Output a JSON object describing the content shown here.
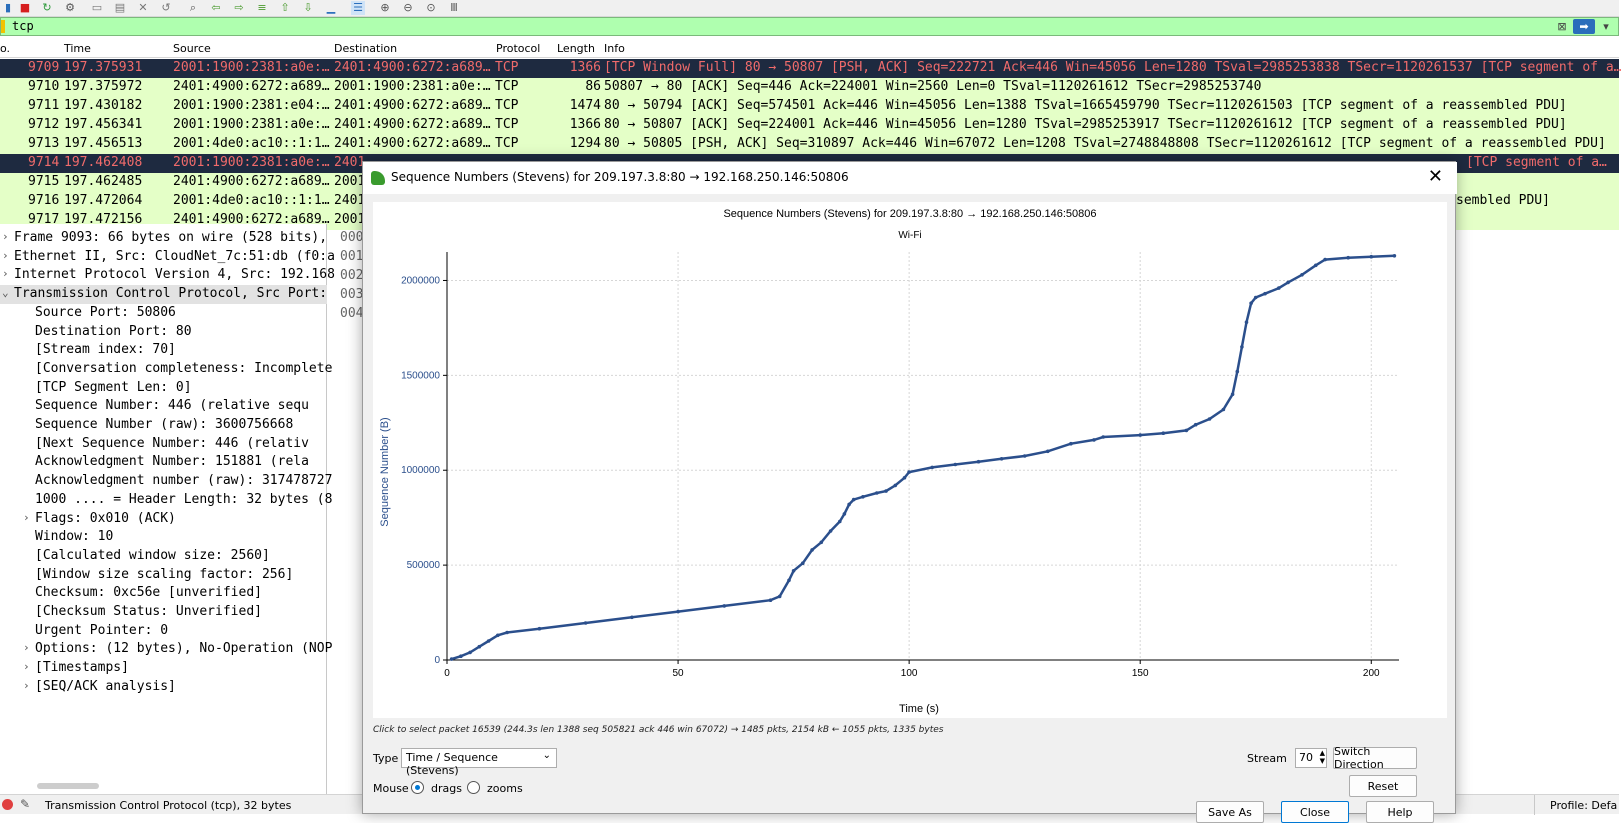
{
  "toolbar": {
    "icons": [
      "shark-fin-icon",
      "stop-capture-icon",
      "restart-capture-icon",
      "capture-options-icon",
      "open-file-icon",
      "save-file-icon",
      "close-file-icon",
      "reload-icon",
      "find-packet-icon",
      "go-back-icon",
      "go-forward-icon",
      "go-to-packet-icon",
      "first-packet-icon",
      "last-packet-icon",
      "auto-scroll-icon",
      "colorize-icon",
      "zoom-in-icon",
      "zoom-out-icon",
      "normal-size-icon",
      "resize-columns-icon"
    ]
  },
  "filter": {
    "value": "tcp"
  },
  "columns": {
    "no": "o.",
    "time": "Time",
    "source": "Source",
    "destination": "Destination",
    "protocol": "Protocol",
    "length": "Length",
    "info": "Info"
  },
  "packets": [
    {
      "no": "9709",
      "time": "197.375931",
      "source": "2001:1900:2381:a0e:…",
      "destination": "2401:4900:6272:a689…",
      "protocol": "TCP",
      "length": "1366",
      "info": "[TCP Window Full] 80 → 50807 [PSH, ACK] Seq=222721 Ack=446 Win=45056 Len=1280 TSval=2985253838 TSecr=1120261537 [TCP segment of a…"
    },
    {
      "no": "9710",
      "time": "197.375972",
      "source": "2401:4900:6272:a689…",
      "destination": "2001:1900:2381:a0e:…",
      "protocol": "TCP",
      "length": "86",
      "info": "50807 → 80 [ACK] Seq=446 Ack=224001 Win=2560 Len=0 TSval=1120261612 TSecr=2985253740"
    },
    {
      "no": "9711",
      "time": "197.430182",
      "source": "2001:1900:2381:e04:…",
      "destination": "2401:4900:6272:a689…",
      "protocol": "TCP",
      "length": "1474",
      "info": "80 → 50794 [ACK] Seq=574501 Ack=446 Win=45056 Len=1388 TSval=1665459790 TSecr=1120261503 [TCP segment of a reassembled PDU]"
    },
    {
      "no": "9712",
      "time": "197.456341",
      "source": "2001:1900:2381:a0e:…",
      "destination": "2401:4900:6272:a689…",
      "protocol": "TCP",
      "length": "1366",
      "info": "80 → 50807 [ACK] Seq=224001 Ack=446 Win=45056 Len=1280 TSval=2985253917 TSecr=1120261612 [TCP segment of a reassembled PDU]"
    },
    {
      "no": "9713",
      "time": "197.456513",
      "source": "2001:4de0:ac10::1:1…",
      "destination": "2401:4900:6272:a689…",
      "protocol": "TCP",
      "length": "1294",
      "info": "80 → 50805 [PSH, ACK] Seq=310897 Ack=446 Win=67072 Len=1208 TSval=2748848808 TSecr=1120261612 [TCP segment of a reassembled PDU]"
    },
    {
      "no": "9714",
      "time": "197.462408",
      "source": "2001:1900:2381:a0e:…",
      "destination": "2401",
      "protocol": "",
      "length": "",
      "info": "[TCP segment of a…"
    },
    {
      "no": "9715",
      "time": "197.462485",
      "source": "2401:4900:6272:a689…",
      "destination": "2001",
      "protocol": "",
      "length": "",
      "info": ""
    },
    {
      "no": "9716",
      "time": "197.472064",
      "source": "2001:4de0:ac10::1:1…",
      "destination": "2401",
      "protocol": "",
      "length": "",
      "info": "sembled PDU]"
    },
    {
      "no": "9717",
      "time": "197.472156",
      "source": "2401:4900:6272:a689…",
      "destination": "2001",
      "protocol": "",
      "length": "",
      "info": ""
    }
  ],
  "details": [
    {
      "exp": "›",
      "text": "Frame 9093: 66 bytes on wire (528 bits),"
    },
    {
      "exp": "›",
      "text": "Ethernet II, Src: CloudNet_7c:51:db (f0:a"
    },
    {
      "exp": "›",
      "text": "Internet Protocol Version 4, Src: 192.168"
    },
    {
      "exp": "⌄",
      "text": "Transmission Control Protocol, Src Port:"
    },
    {
      "exp": "",
      "text": "Source Port: 50806"
    },
    {
      "exp": "",
      "text": "Destination Port: 80"
    },
    {
      "exp": "",
      "text": "[Stream index: 70]"
    },
    {
      "exp": "",
      "text": "[Conversation completeness: Incomplete"
    },
    {
      "exp": "",
      "text": "[TCP Segment Len: 0]"
    },
    {
      "exp": "",
      "text": "Sequence Number: 446    (relative sequ"
    },
    {
      "exp": "",
      "text": "Sequence Number (raw): 3600756668"
    },
    {
      "exp": "",
      "text": "[Next Sequence Number: 446    (relativ"
    },
    {
      "exp": "",
      "text": "Acknowledgment Number: 151881    (rela"
    },
    {
      "exp": "",
      "text": "Acknowledgment number (raw): 317478727"
    },
    {
      "exp": "",
      "text": "1000 .... = Header Length: 32 bytes (8"
    },
    {
      "exp": "›",
      "text": "Flags: 0x010 (ACK)"
    },
    {
      "exp": "",
      "text": "Window: 10"
    },
    {
      "exp": "",
      "text": "[Calculated window size: 2560]"
    },
    {
      "exp": "",
      "text": "[Window size scaling factor: 256]"
    },
    {
      "exp": "",
      "text": "Checksum: 0xc56e [unverified]"
    },
    {
      "exp": "",
      "text": "[Checksum Status: Unverified]"
    },
    {
      "exp": "",
      "text": "Urgent Pointer: 0"
    },
    {
      "exp": "›",
      "text": "Options: (12 bytes), No-Operation (NOP"
    },
    {
      "exp": "›",
      "text": "[Timestamps]"
    },
    {
      "exp": "›",
      "text": "[SEQ/ACK analysis]"
    }
  ],
  "bytes_offsets": [
    "000",
    "001",
    "002",
    "003",
    "004"
  ],
  "status": {
    "text": "Transmission Control Protocol (tcp), 32 bytes",
    "profile": "Profile: Defa"
  },
  "dialog": {
    "title": "Sequence Numbers (Stevens) for 209.197.3.8:80 → 192.168.250.146:50806",
    "hint": "Click to select packet 16539 (244.3s len 1388 seq 505821 ack 446 win 67072) → 1485 pkts, 2154 kB ← 1055 pkts, 1335 bytes",
    "type_label": "Type",
    "type_value": "Time / Sequence (Stevens)",
    "stream_label": "Stream",
    "stream_value": "70",
    "switch_direction": "Switch Direction",
    "mouse_label": "Mouse",
    "drags_label": "drags",
    "zooms_label": "zooms",
    "reset": "Reset",
    "save_as": "Save As",
    "close": "Close",
    "help": "Help"
  },
  "chart_data": {
    "type": "scatter",
    "title": "Sequence Numbers (Stevens) for 209.197.3.8:80 → 192.168.250.146:50806",
    "subtitle": "Wi-Fi",
    "xlabel": "Time (s)",
    "ylabel": "Sequence Number (B)",
    "xlim": [
      0,
      206
    ],
    "ylim": [
      0,
      2150000
    ],
    "xticks": [
      0,
      50,
      100,
      150,
      200
    ],
    "yticks": [
      0,
      500000,
      1000000,
      1500000,
      2000000
    ],
    "grid": true,
    "color": "#2b4f8c",
    "x": [
      1,
      3,
      5,
      7,
      9,
      11,
      13,
      20,
      30,
      40,
      50,
      60,
      70,
      72,
      74,
      75,
      77,
      79,
      81,
      83,
      85,
      86,
      87,
      88,
      90,
      93,
      95,
      97,
      99,
      100,
      105,
      110,
      115,
      120,
      125,
      130,
      135,
      140,
      142,
      150,
      155,
      160,
      162,
      165,
      168,
      170,
      171,
      172,
      173,
      174,
      175,
      177,
      180,
      182,
      185,
      188,
      190,
      195,
      200,
      205
    ],
    "y": [
      5000,
      20000,
      40000,
      70000,
      100000,
      130000,
      145000,
      165000,
      195000,
      225000,
      255000,
      285000,
      315000,
      335000,
      420000,
      470000,
      510000,
      580000,
      620000,
      680000,
      730000,
      770000,
      820000,
      845000,
      860000,
      880000,
      890000,
      920000,
      960000,
      990000,
      1015000,
      1030000,
      1045000,
      1060000,
      1075000,
      1100000,
      1140000,
      1160000,
      1175000,
      1185000,
      1195000,
      1210000,
      1240000,
      1270000,
      1320000,
      1400000,
      1520000,
      1650000,
      1780000,
      1880000,
      1910000,
      1930000,
      1960000,
      1990000,
      2030000,
      2080000,
      2110000,
      2120000,
      2125000,
      2130000
    ]
  }
}
